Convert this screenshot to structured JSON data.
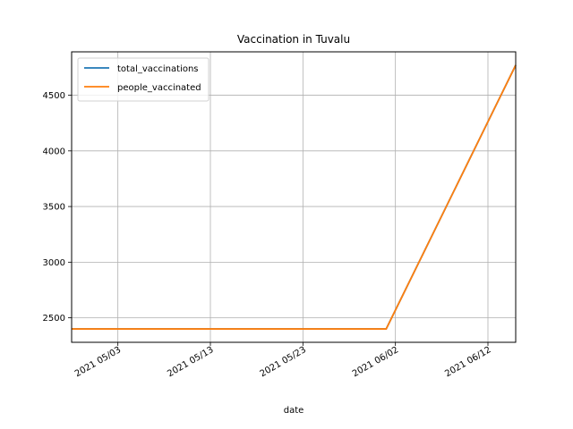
{
  "chart_data": {
    "type": "line",
    "title": "Vaccination in Tuvalu",
    "xlabel": "date",
    "ylabel": "",
    "x": [
      "2021-04-28",
      "2021-06-01",
      "2021-06-15"
    ],
    "xlim": [
      "2021-04-28",
      "2021-06-15"
    ],
    "ylim": [
      2280,
      4890
    ],
    "x_ticks": [
      {
        "date": "2021-05-03",
        "label": "2021 05/03"
      },
      {
        "date": "2021-05-13",
        "label": "2021 05/13"
      },
      {
        "date": "2021-05-23",
        "label": "2021 05/23"
      },
      {
        "date": "2021-06-02",
        "label": "2021 06/02"
      },
      {
        "date": "2021-06-12",
        "label": "2021 06/12"
      }
    ],
    "y_ticks": [
      2500,
      3000,
      3500,
      4000,
      4500
    ],
    "grid": true,
    "legend_position": "upper-left",
    "series": [
      {
        "name": "total_vaccinations",
        "color": "#1f77b4",
        "values": [
          2400,
          2400,
          4770
        ]
      },
      {
        "name": "people_vaccinated",
        "color": "#ff7f0e",
        "values": [
          2400,
          2400,
          4770
        ]
      }
    ]
  }
}
